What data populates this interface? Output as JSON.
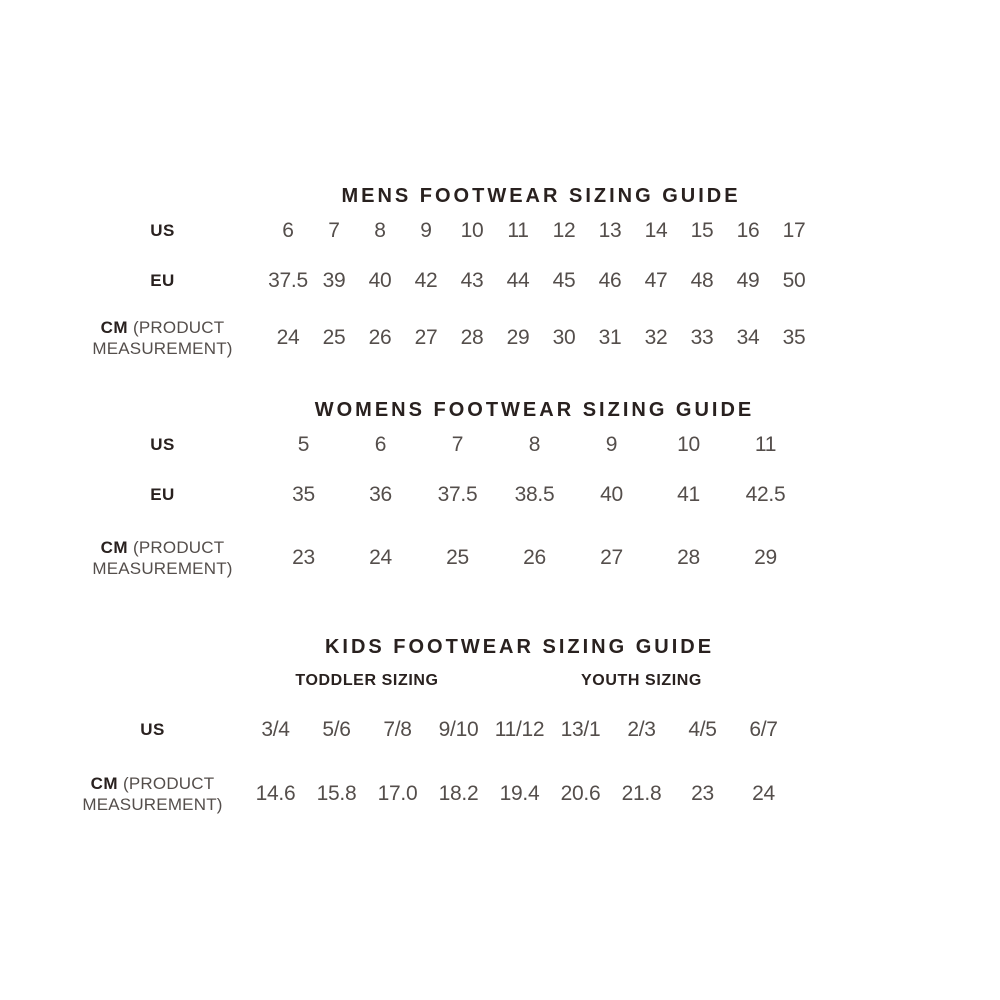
{
  "page": {
    "background": "#ffffff",
    "title_color": "#29211f",
    "value_color": "#544e4b"
  },
  "tables": [
    {
      "id": "mens",
      "title": "MENS FOOTWEAR SIZING GUIDE",
      "rows": [
        {
          "label": "US",
          "label_note": "",
          "values": [
            "6",
            "7",
            "8",
            "9",
            "10",
            "11",
            "12",
            "13",
            "14",
            "15",
            "16",
            "17"
          ]
        },
        {
          "label": "EU",
          "label_note": "",
          "values": [
            "37.5",
            "39",
            "40",
            "42",
            "43",
            "44",
            "45",
            "46",
            "47",
            "48",
            "49",
            "50"
          ]
        },
        {
          "label": "CM",
          "label_note": "(PRODUCT MEASUREMENT)",
          "values": [
            "24",
            "25",
            "26",
            "27",
            "28",
            "29",
            "30",
            "31",
            "32",
            "33",
            "34",
            "35"
          ]
        }
      ]
    },
    {
      "id": "womens",
      "title": "WOMENS FOOTWEAR SIZING GUIDE",
      "rows": [
        {
          "label": "US",
          "label_note": "",
          "values": [
            "5",
            "6",
            "7",
            "8",
            "9",
            "10",
            "11"
          ]
        },
        {
          "label": "EU",
          "label_note": "",
          "values": [
            "35",
            "36",
            "37.5",
            "38.5",
            "40",
            "41",
            "42.5"
          ]
        },
        {
          "label": "CM",
          "label_note": "(PRODUCT MEASUREMENT)",
          "values": [
            "23",
            "24",
            "25",
            "26",
            "27",
            "28",
            "29"
          ]
        }
      ]
    },
    {
      "id": "kids",
      "title": "KIDS FOOTWEAR SIZING GUIDE",
      "groups": [
        {
          "label": "TODDLER SIZING",
          "span": 4
        },
        {
          "label": "YOUTH SIZING",
          "span": 5
        }
      ],
      "rows": [
        {
          "label": "US",
          "label_note": "",
          "values": [
            "3/4",
            "5/6",
            "7/8",
            "9/10",
            "11/12",
            "13/1",
            "2/3",
            "4/5",
            "6/7"
          ]
        },
        {
          "label": "CM",
          "label_note": "(PRODUCT MEASUREMENT)",
          "values": [
            "14.6",
            "15.8",
            "17.0",
            "18.2",
            "19.4",
            "20.6",
            "21.8",
            "23",
            "24"
          ]
        }
      ]
    }
  ]
}
